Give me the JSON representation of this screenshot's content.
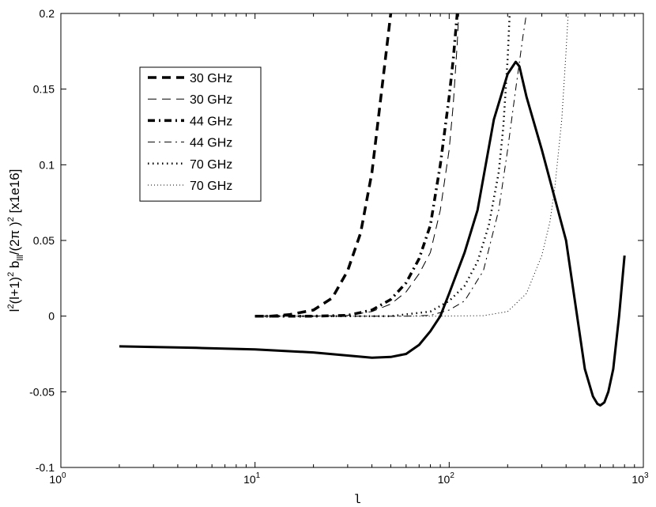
{
  "chart_data": {
    "type": "line",
    "title": "",
    "xlabel": "l",
    "ylabel": {
      "parts": [
        {
          "t": "l",
          "sup": false,
          "sub": false
        },
        {
          "t": "2",
          "sup": true,
          "sub": false
        },
        {
          "t": "(l+1)",
          "sup": false,
          "sub": false
        },
        {
          "t": "2",
          "sup": true,
          "sub": false
        },
        {
          "t": " b",
          "sup": false,
          "sub": false
        },
        {
          "t": "lll",
          "sup": false,
          "sub": true
        },
        {
          "t": "/(2π )",
          "sup": false,
          "sub": false
        },
        {
          "t": "2",
          "sup": true,
          "sub": false
        },
        {
          "t": " [x1e16]",
          "sup": false,
          "sub": false
        }
      ]
    },
    "xscale": "log",
    "xlim": [
      1,
      1000
    ],
    "ylim": [
      -0.1,
      0.2
    ],
    "x_ticks": [
      {
        "v": 1,
        "base": "10",
        "exp": "0"
      },
      {
        "v": 10,
        "base": "10",
        "exp": "1"
      },
      {
        "v": 100,
        "base": "10",
        "exp": "2"
      },
      {
        "v": 1000,
        "base": "10",
        "exp": "3"
      }
    ],
    "y_ticks": [
      {
        "v": -0.1,
        "label": "-0.1"
      },
      {
        "v": -0.05,
        "label": "-0.05"
      },
      {
        "v": 0,
        "label": "0"
      },
      {
        "v": 0.05,
        "label": "0.05"
      },
      {
        "v": 0.1,
        "label": "0.1"
      },
      {
        "v": 0.15,
        "label": "0.15"
      },
      {
        "v": 0.2,
        "label": "0.2"
      }
    ],
    "grid": false,
    "legend_position": "upper-left",
    "series": [
      {
        "name": "30 GHz",
        "style": "dashed-thick",
        "x": [
          10,
          12,
          15,
          20,
          25,
          30,
          35,
          40,
          45,
          50
        ],
        "y": [
          0,
          0,
          0.001,
          0.004,
          0.012,
          0.03,
          0.055,
          0.095,
          0.15,
          0.2
        ]
      },
      {
        "name": "30 GHz",
        "style": "dashed-thin",
        "x": [
          10,
          20,
          30,
          40,
          50,
          60,
          70,
          80,
          90,
          100,
          105,
          110,
          112
        ],
        "y": [
          0,
          0,
          0.0005,
          0.003,
          0.008,
          0.016,
          0.028,
          0.042,
          0.07,
          0.11,
          0.14,
          0.18,
          0.2
        ]
      },
      {
        "name": "44 GHz",
        "style": "dashdot-thick",
        "x": [
          10,
          20,
          30,
          40,
          50,
          60,
          70,
          80,
          90,
          100,
          105,
          110
        ],
        "y": [
          0,
          0,
          0.0005,
          0.004,
          0.011,
          0.022,
          0.038,
          0.06,
          0.1,
          0.145,
          0.17,
          0.2
        ]
      },
      {
        "name": "44 GHz",
        "style": "dashdot-thin",
        "x": [
          10,
          60,
          80,
          100,
          120,
          150,
          180,
          200,
          220,
          240,
          250
        ],
        "y": [
          0,
          0,
          0.0005,
          0.004,
          0.01,
          0.03,
          0.07,
          0.11,
          0.15,
          0.185,
          0.2
        ]
      },
      {
        "name": "70 GHz",
        "style": "dotted-thick",
        "x": [
          10,
          50,
          80,
          100,
          120,
          140,
          160,
          180,
          190,
          200,
          205
        ],
        "y": [
          0,
          0,
          0.003,
          0.01,
          0.02,
          0.036,
          0.06,
          0.095,
          0.125,
          0.17,
          0.2
        ]
      },
      {
        "name": "70 GHz",
        "style": "dotted-thin",
        "x": [
          10,
          90,
          150,
          200,
          250,
          300,
          330,
          350,
          380,
          400,
          410
        ],
        "y": [
          0,
          0,
          0.0003,
          0.003,
          0.015,
          0.04,
          0.062,
          0.085,
          0.13,
          0.175,
          0.2
        ]
      },
      {
        "style": "solid-thick",
        "x": [
          2,
          5,
          10,
          20,
          40,
          50,
          60,
          70,
          80,
          90,
          100,
          120,
          140,
          170,
          200,
          220,
          230,
          250,
          300,
          400,
          500,
          550,
          580,
          600,
          630,
          660,
          700,
          750,
          800
        ],
        "y": [
          -0.02,
          -0.021,
          -0.022,
          -0.024,
          -0.0275,
          -0.027,
          -0.025,
          -0.019,
          -0.01,
          0,
          0.015,
          0.042,
          0.07,
          0.13,
          0.16,
          0.168,
          0.165,
          0.145,
          0.11,
          0.05,
          -0.035,
          -0.053,
          -0.058,
          -0.059,
          -0.057,
          -0.05,
          -0.035,
          0,
          0.04
        ]
      }
    ]
  }
}
